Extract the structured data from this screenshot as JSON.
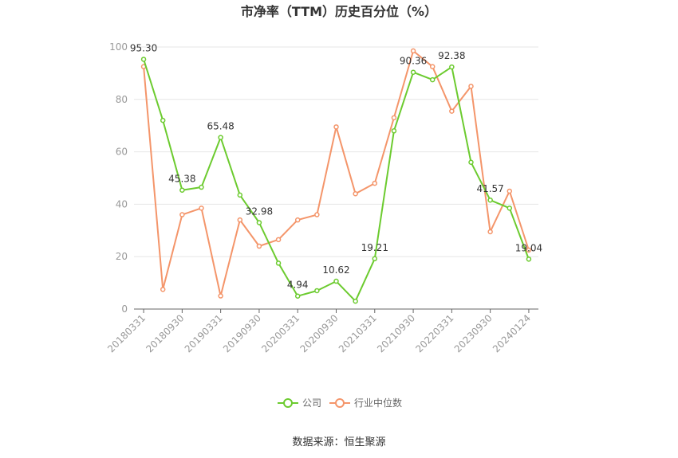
{
  "chart_data": {
    "type": "line",
    "title": "市净率（TTM）历史百分位（%）",
    "ylim": [
      0,
      100
    ],
    "yticks": [
      "0",
      "20",
      "40",
      "60",
      "80",
      "100"
    ],
    "xtick_labels": [
      "20180331",
      "20180930",
      "20190331",
      "20190930",
      "20200331",
      "20200930",
      "20210331",
      "20210930",
      "20220331",
      "20230930",
      "20240124"
    ],
    "x": [
      "20180331",
      "20180630",
      "20180930",
      "20181231",
      "20190331",
      "20190630",
      "20190930",
      "20191231",
      "20200331",
      "20200630",
      "20200930",
      "20201231",
      "20210331",
      "20210630",
      "20210930",
      "20211231",
      "20220331",
      "20220630",
      "20230930",
      "20231231",
      "20240124"
    ],
    "series": [
      {
        "name": "公司",
        "color": "#6ccb2f",
        "values": [
          95.3,
          72.0,
          45.38,
          46.5,
          65.48,
          43.5,
          32.98,
          17.5,
          4.94,
          7.0,
          10.62,
          3.0,
          19.21,
          68.0,
          90.36,
          87.5,
          92.38,
          56.0,
          41.57,
          38.5,
          19.04
        ],
        "labels": [
          "95.30",
          "",
          "45.38",
          "",
          "65.48",
          "",
          "32.98",
          "",
          "4.94",
          "",
          "10.62",
          "",
          "19.21",
          "",
          "90.36",
          "",
          "92.38",
          "",
          "41.57",
          "",
          "19.04"
        ]
      },
      {
        "name": "行业中位数",
        "color": "#f4956a",
        "values": [
          92.5,
          7.5,
          36.0,
          38.5,
          5.0,
          34.0,
          24.0,
          26.5,
          34.0,
          36.0,
          69.5,
          44.0,
          48.0,
          73.0,
          98.5,
          92.5,
          75.5,
          85.0,
          29.5,
          45.0,
          22.5
        ]
      }
    ]
  },
  "source_text": "数据来源：恒生聚源"
}
